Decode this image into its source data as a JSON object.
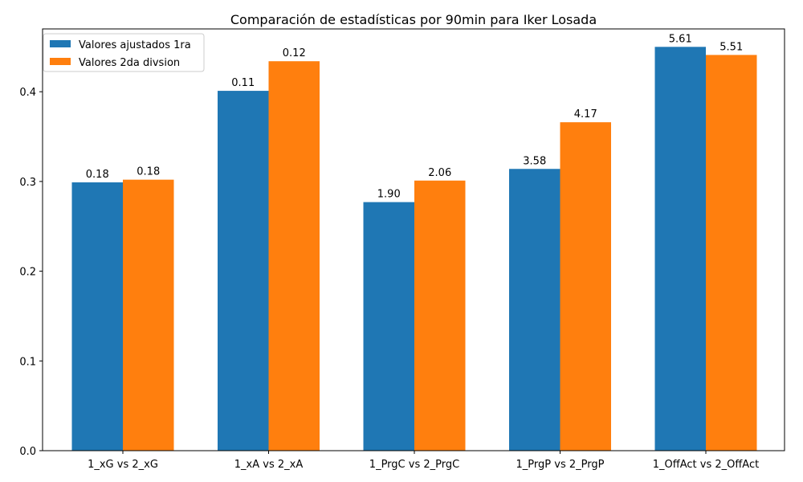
{
  "chart_data": {
    "type": "bar",
    "title": "Comparación de estadísticas por 90min para Iker Losada",
    "xlabel": "",
    "ylabel": "",
    "ylim": [
      0,
      0.47
    ],
    "yticks": [
      "0.0",
      "0.1",
      "0.2",
      "0.3",
      "0.4"
    ],
    "grid": false,
    "legend_position": "top-left",
    "categories": [
      "1_xG vs 2_xG",
      "1_xA vs 2_xA",
      "1_PrgC vs 2_PrgC",
      "1_PrgP vs 2_PrgP",
      "1_OffAct vs 2_OffAct"
    ],
    "series": [
      {
        "name": "Valores ajustados 1ra",
        "color": "#1f77b4",
        "values": [
          0.299,
          0.401,
          0.277,
          0.314,
          0.45
        ],
        "labels": [
          "0.18",
          "0.11",
          "1.90",
          "3.58",
          "5.61"
        ]
      },
      {
        "name": "Valores 2da divsion",
        "color": "#ff7f0e",
        "values": [
          0.302,
          0.434,
          0.301,
          0.366,
          0.441
        ],
        "labels": [
          "0.18",
          "0.12",
          "2.06",
          "4.17",
          "5.51"
        ]
      }
    ]
  }
}
